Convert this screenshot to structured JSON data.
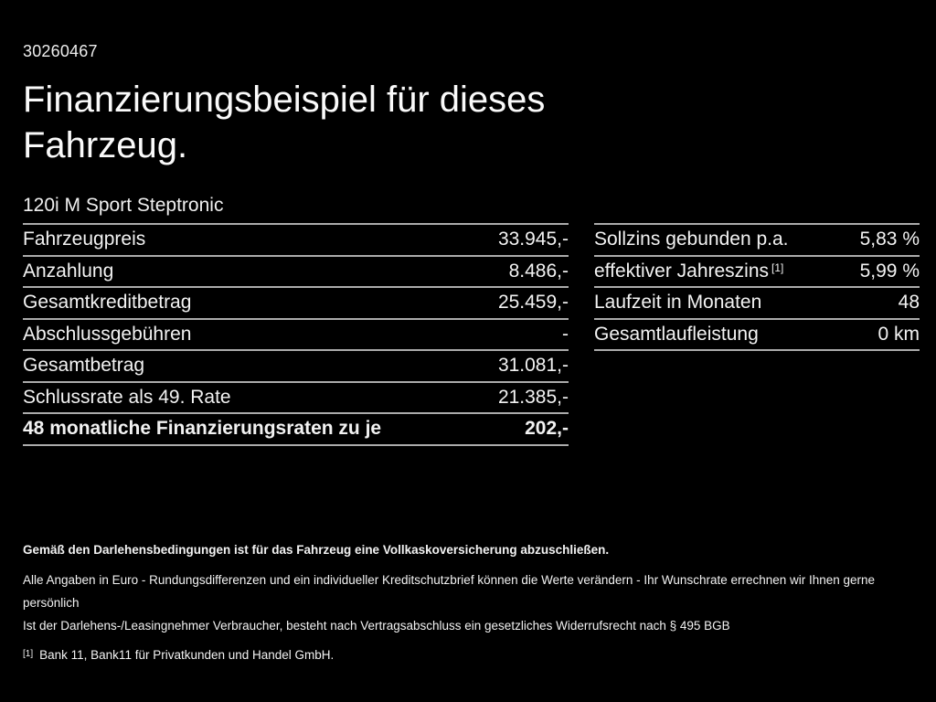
{
  "page": {
    "doc_number": "30260467",
    "title": "Finanzierungsbeispiel für dieses Fahrzeug.",
    "subtitle": "120i M Sport Steptronic"
  },
  "left_table": {
    "rows": [
      {
        "label": "Fahrzeugpreis",
        "value": "33.945,-"
      },
      {
        "label": "Anzahlung",
        "value": "8.486,-"
      },
      {
        "label": "Gesamtkreditbetrag",
        "value": "25.459,-"
      },
      {
        "label": "Abschlussgebühren",
        "value": "-"
      },
      {
        "label": "Gesamtbetrag",
        "value": "31.081,-"
      },
      {
        "label": "Schlussrate als 49. Rate",
        "value": "21.385,-"
      },
      {
        "label": "48 monatliche Finanzierungsraten zu je",
        "value": "202,-"
      }
    ]
  },
  "right_table": {
    "rows": [
      {
        "label": "Sollzins gebunden p.a.",
        "sup": "",
        "value": "5,83 %"
      },
      {
        "label": "effektiver Jahreszins",
        "sup": "[1]",
        "value": "5,99 %"
      },
      {
        "label": "Laufzeit in Monaten",
        "sup": "",
        "value": "48"
      },
      {
        "label": "Gesamtlaufleistung",
        "sup": "",
        "value": "0 km"
      }
    ]
  },
  "footer": {
    "insurance_note": "Gemäß den Darlehensbedingungen ist für das Fahrzeug eine Vollkaskoversicherung abzuschließen.",
    "disclaimer_line1": "Alle Angaben in Euro - Rundungsdifferenzen und ein individueller Kreditschutzbrief können die Werte verändern - Ihr Wunschrate errechnen wir Ihnen gerne persönlich",
    "disclaimer_line2": "Ist der Darlehens-/Leasingnehmer Verbraucher, besteht nach Vertragsabschluss ein gesetzliches Widerrufsrecht nach § 495 BGB",
    "footnote_marker": "[1]",
    "footnote_text": "Bank 11, Bank11 für Privatkunden und Handel GmbH."
  },
  "colors": {
    "background": "#000000",
    "text": "#f2f2f2",
    "divider": "#ababab"
  }
}
